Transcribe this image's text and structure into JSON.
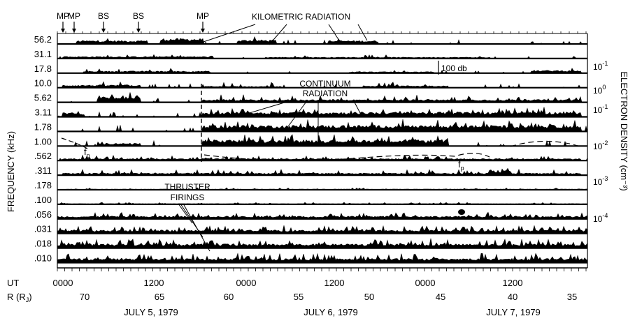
{
  "chart_data": {
    "type": "line",
    "title": "",
    "ylabel": "FREQUENCY (kHz)",
    "y2label": "ELECTRON DENSITY (cm⁻³)",
    "frequency_channels": [
      "56.2",
      "31.1",
      "17.8",
      "10.0",
      "5.62",
      "3.11",
      "1.78",
      "1.00",
      ".562",
      ".311",
      ".178",
      ".100",
      ".056",
      ".031",
      ".018",
      ".010"
    ],
    "x_axis": {
      "ut_label": "UT",
      "ut_ticks": [
        "0000",
        "1200",
        "0000",
        "1200",
        "0000",
        "1200"
      ],
      "r_label": "R (R",
      "r_sub": "J",
      "r_ticks": [
        "70",
        "65",
        "60",
        "55",
        "50",
        "45",
        "40",
        "35"
      ],
      "dates": [
        "JULY 5, 1979",
        "JULY 6, 1979",
        "JULY 7, 1979"
      ]
    },
    "y2_axis": {
      "ticks": [
        {
          "base": "10",
          "exp": "-1"
        },
        {
          "base": "10",
          "exp": "0"
        },
        {
          "base": "10",
          "exp": "-1"
        },
        {
          "base": "10",
          "exp": "-2"
        },
        {
          "base": "10",
          "exp": "-3"
        },
        {
          "base": "10",
          "exp": "-4"
        }
      ]
    },
    "boundary_markers": [
      "MP",
      "MP",
      "BS",
      "BS",
      "MP"
    ],
    "annotations": {
      "kilometric": "KILOMETRIC RADIATION",
      "continuum_1": "CONTINUUM",
      "continuum_2": "RADIATION",
      "thruster_1": "THRUSTER",
      "thruster_2": "FIRINGS",
      "scale": "100 db",
      "fp_base": "f",
      "fp_sub": "p"
    }
  }
}
